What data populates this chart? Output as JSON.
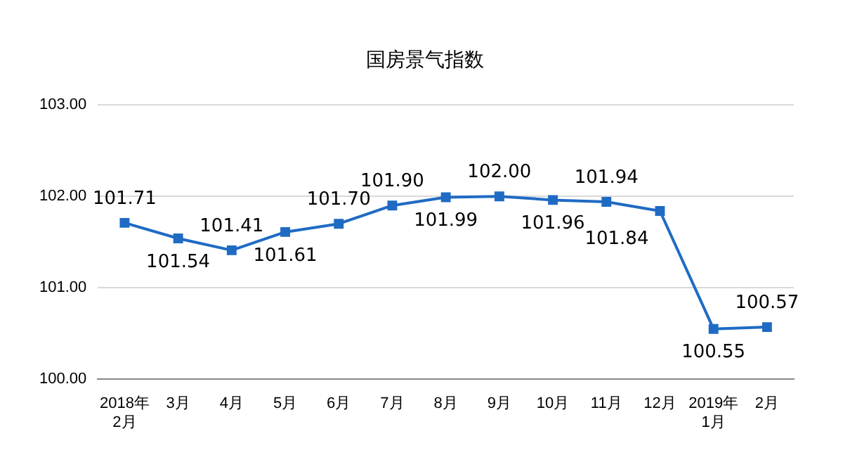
{
  "chart_data": {
    "type": "line",
    "title": "国房景气指数",
    "categories": [
      "2018年\n2月",
      "3月",
      "4月",
      "5月",
      "6月",
      "7月",
      "8月",
      "9月",
      "10月",
      "11月",
      "12月",
      "2019年\n1月",
      "2月"
    ],
    "series": [
      {
        "color": "#1f6bc4",
        "values": [
          101.71,
          101.54,
          101.41,
          101.61,
          101.7,
          101.9,
          101.99,
          102.0,
          101.96,
          101.94,
          101.84,
          100.55,
          100.57
        ],
        "value_labels": [
          "101.71",
          "101.54",
          "101.41",
          "101.61",
          "101.70",
          "101.90",
          "101.99",
          "102.00",
          "101.96",
          "101.94",
          "101.84",
          "100.55",
          "100.57"
        ]
      }
    ],
    "ylim": [
      100,
      103
    ],
    "yticks": [
      {
        "value": 100,
        "label": "100.00"
      },
      {
        "value": 101,
        "label": "101.00"
      },
      {
        "value": 102,
        "label": "102.00"
      },
      {
        "value": 103,
        "label": "103.00"
      }
    ],
    "grid": "y",
    "legend": false,
    "marker": "square",
    "line_style": "solid"
  }
}
